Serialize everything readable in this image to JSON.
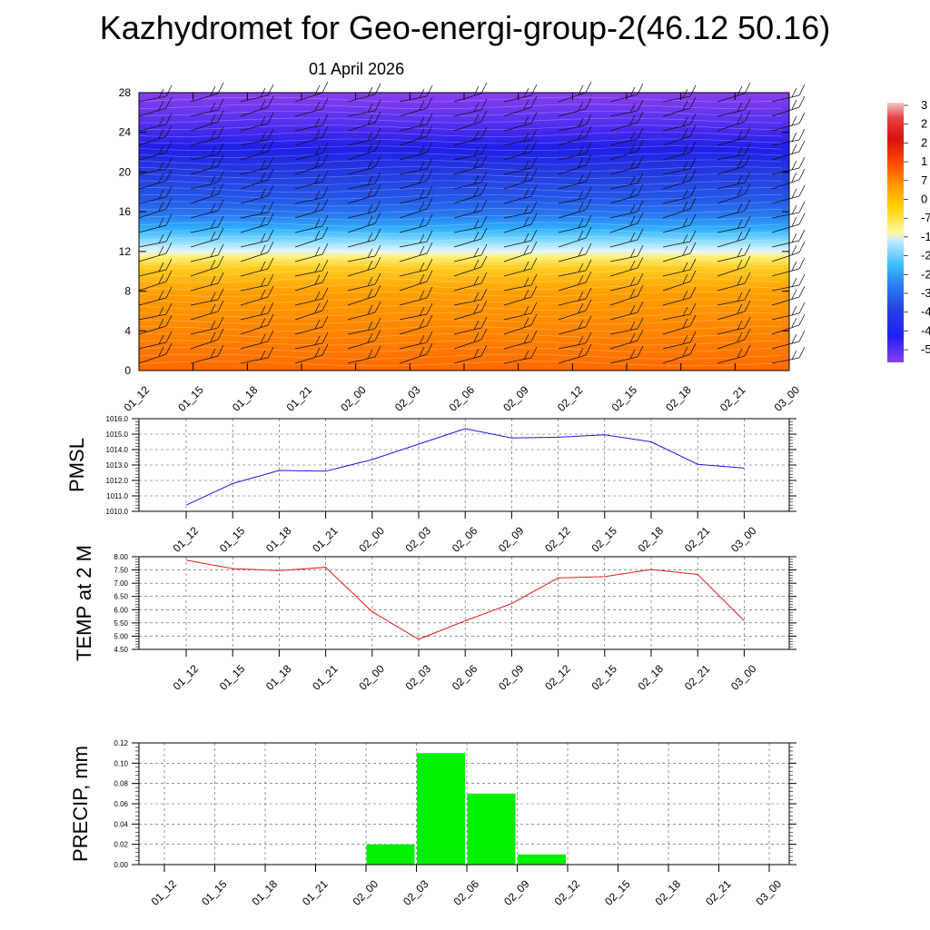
{
  "title": "Kazhydromet for Geo-energi-group-2(46.12 50.16)",
  "subtitle": "01 April 2026",
  "colors": {
    "pmsl_line": "#1a1ae6",
    "temp_line": "#e01a1a",
    "precip_bar": "#00f000"
  },
  "chart_data": [
    {
      "type": "heatmap",
      "name": "vertical cross-section (filled contours with wind barbs)",
      "x_ticks": [
        "01_12",
        "01_15",
        "01_18",
        "01_21",
        "02_00",
        "02_03",
        "02_06",
        "02_09",
        "02_12",
        "02_15",
        "02_18",
        "02_21",
        "03_00"
      ],
      "y_ticks": [
        0,
        4,
        8,
        12,
        16,
        20,
        24,
        28
      ],
      "ylim": [
        0,
        28
      ],
      "colorbar_labels": [
        "3",
        "2",
        "2",
        "1",
        "7",
        "0",
        "-7",
        "-1",
        "-2",
        "-2",
        "-3",
        "-4",
        "-4",
        "-5"
      ]
    },
    {
      "type": "line",
      "ylabel": "PMSL",
      "categories": [
        "01_12",
        "01_15",
        "01_18",
        "01_21",
        "02_00",
        "02_03",
        "02_06",
        "02_09",
        "02_12",
        "02_15",
        "02_18",
        "02_21",
        "03_00"
      ],
      "values": [
        1010.4,
        1011.8,
        1012.65,
        1012.6,
        1013.35,
        1014.35,
        1015.35,
        1014.75,
        1014.8,
        1014.95,
        1014.5,
        1013.05,
        1012.8
      ],
      "ylim": [
        1010,
        1016
      ],
      "y_ticks": [
        "1010.0",
        "1011.0",
        "1012.0",
        "1013.0",
        "1014.0",
        "1015.0",
        "1016.0"
      ]
    },
    {
      "type": "line",
      "ylabel": "TEMP at 2 M",
      "categories": [
        "01_12",
        "01_15",
        "01_18",
        "01_21",
        "02_00",
        "02_03",
        "02_06",
        "02_09",
        "02_12",
        "02_15",
        "02_18",
        "02_21",
        "03_00"
      ],
      "values": [
        7.87,
        7.55,
        7.48,
        7.6,
        5.92,
        4.88,
        5.58,
        6.23,
        7.2,
        7.25,
        7.52,
        7.33,
        5.58
      ],
      "ylim": [
        4.5,
        8.0
      ],
      "y_ticks": [
        "4.50",
        "5.00",
        "5.50",
        "6.00",
        "6.50",
        "7.00",
        "7.50",
        "8.00"
      ]
    },
    {
      "type": "bar",
      "ylabel": "PRECIP, mm",
      "categories": [
        "01_12",
        "01_15",
        "01_18",
        "01_21",
        "02_00",
        "02_03",
        "02_06",
        "02_09",
        "02_12",
        "02_15",
        "02_18",
        "02_21",
        "03_00"
      ],
      "values": [
        0,
        0,
        0,
        0,
        0.02,
        0.11,
        0.07,
        0.01,
        0,
        0,
        0,
        0,
        0
      ],
      "ylim": [
        0,
        0.12
      ],
      "y_ticks": [
        "0.00",
        "0.02",
        "0.04",
        "0.06",
        "0.08",
        "0.10",
        "0.12"
      ]
    }
  ]
}
